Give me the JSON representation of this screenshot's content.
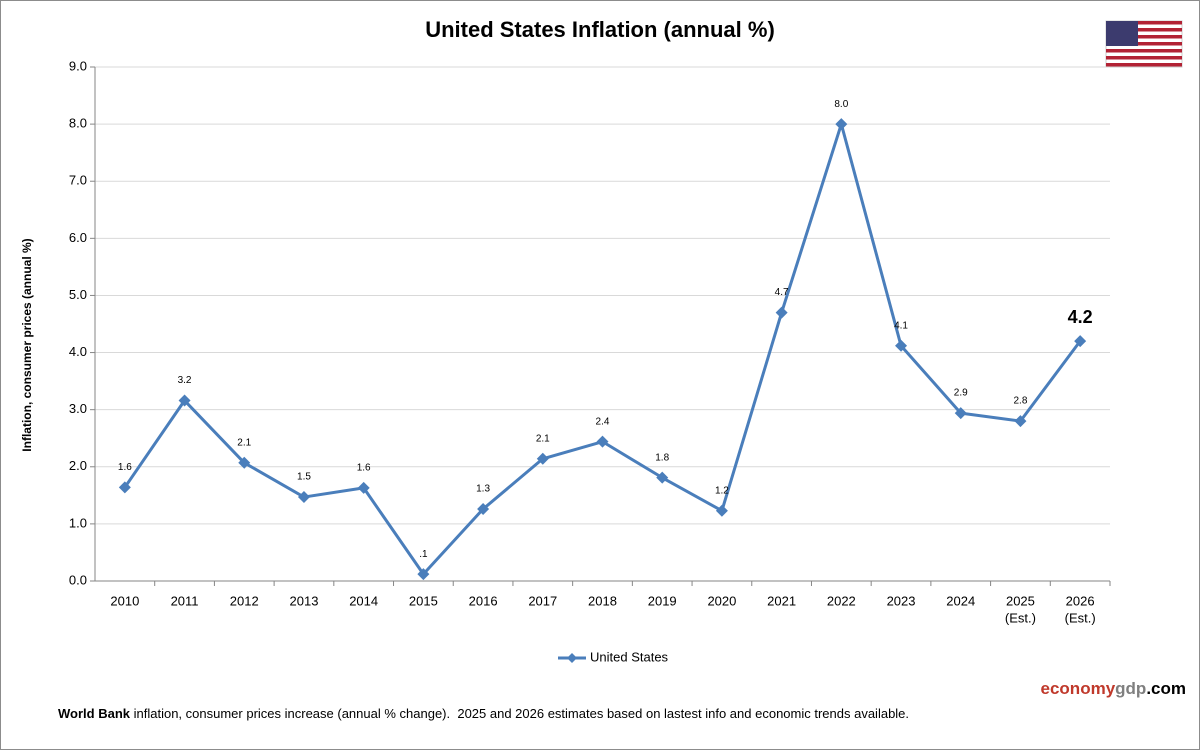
{
  "chart_data": {
    "type": "line",
    "title": "United States Inflation (annual %)",
    "y_axis_label": "Inflation, consumer prices (annual %)",
    "categories": [
      "2010",
      "2011",
      "2012",
      "2013",
      "2014",
      "2015",
      "2016",
      "2017",
      "2018",
      "2019",
      "2020",
      "2021",
      "2022",
      "2023",
      "2024",
      [
        "2025",
        "(Est.)"
      ],
      [
        "2026",
        "(Est.)"
      ]
    ],
    "series": [
      {
        "name": "United States",
        "color": "#4a7ebb",
        "values": [
          1.64,
          3.16,
          2.07,
          1.47,
          1.63,
          0.12,
          1.26,
          2.14,
          2.44,
          1.81,
          1.23,
          4.7,
          8.0,
          4.12,
          2.94,
          2.8,
          4.2
        ],
        "value_labels": [
          "1.6",
          "3.2",
          "2.1",
          "1.5",
          "1.6",
          ".1",
          "1.3",
          "2.1",
          "2.4",
          "1.8",
          "1.2",
          "4.7",
          "8.0",
          "4.1",
          "2.9",
          "2.8",
          "4.2"
        ]
      }
    ],
    "ylim": [
      0,
      9
    ],
    "yticks": [
      {
        "value": 0,
        "label": "0.0"
      },
      {
        "value": 1,
        "label": "1.0"
      },
      {
        "value": 2,
        "label": "2.0"
      },
      {
        "value": 3,
        "label": "3.0"
      },
      {
        "value": 4,
        "label": "4.0"
      },
      {
        "value": 5,
        "label": "5.0"
      },
      {
        "value": 6,
        "label": "6.0"
      },
      {
        "value": 7,
        "label": "7.0"
      },
      {
        "value": 8,
        "label": "8.0"
      },
      {
        "value": 9,
        "label": "9.0"
      }
    ],
    "grid": true,
    "legend": "bottom"
  },
  "branding": {
    "parts": [
      "economy",
      "gdp",
      ".com"
    ]
  },
  "footer": {
    "bold": "World Bank",
    "text": " inflation, consumer prices increase (annual % change).  2025 and 2026 estimates based on lastest info and economic trends available."
  }
}
